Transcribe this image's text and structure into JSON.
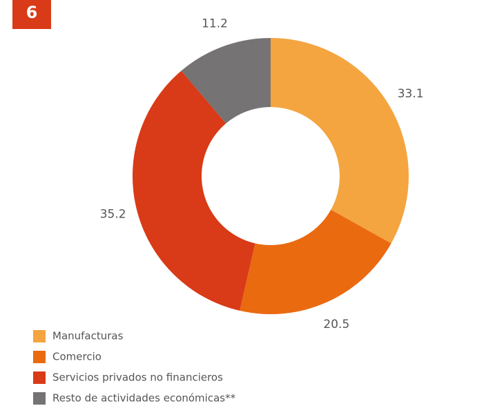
{
  "figure_number": "6",
  "chart_data": {
    "type": "donut",
    "categories": [
      "Manufacturas",
      "Comercio",
      "Servicios privados no financieros",
      "Resto de actividades económicas**"
    ],
    "values": [
      33.1,
      20.5,
      35.2,
      11.2
    ],
    "colors": [
      "#f4a540",
      "#ea6a10",
      "#d93a17",
      "#757374"
    ],
    "legend": "bottom-left"
  }
}
